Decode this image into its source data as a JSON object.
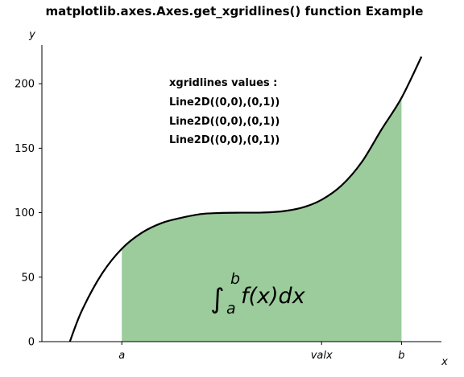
{
  "colors": {
    "curve": "#000000",
    "fill": "#9ccc9c",
    "axis": "#000000",
    "background": "#ffffff"
  },
  "chart_data": {
    "type": "line",
    "title": "matplotlib.axes.Axes.get_xgridlines() function Example",
    "xlabel": "x",
    "ylabel": "y",
    "xlim": [
      0,
      10
    ],
    "ylim": [
      0,
      240
    ],
    "grid": false,
    "spines_visible": [
      "left",
      "bottom"
    ],
    "x": [
      0.0,
      0.5,
      1.0,
      1.5,
      2.0,
      2.5,
      3.0,
      3.5,
      4.0,
      4.5,
      5.0,
      5.5,
      6.0,
      6.5,
      7.0,
      7.5,
      8.0,
      8.5,
      9.0,
      9.5,
      10.0
    ],
    "series": [
      {
        "x": [
          0.7,
          1.0,
          1.5,
          2.0,
          2.5,
          3.0,
          3.5,
          4.0,
          4.5,
          5.0,
          5.5,
          6.0,
          6.5,
          7.0,
          7.5,
          8.0,
          8.5,
          9.0,
          9.5
        ],
        "values": [
          0,
          24.0,
          52.5,
          72,
          84.4,
          92,
          96.1,
          99.0,
          99.8,
          100,
          100.1,
          101,
          103.8,
          110,
          121.1,
          139,
          164.5,
          189,
          221
        ]
      }
    ],
    "fill_between": {
      "from_x": 2.0,
      "to_x": 9.0,
      "baseline": 0
    },
    "yticks": {
      "values": [
        0,
        50,
        100,
        150,
        200
      ],
      "labels": [
        "0",
        "50",
        "100",
        "150",
        "200"
      ]
    },
    "xticks": {
      "values": [
        2.0,
        7.0,
        9.0
      ],
      "labels": [
        "a",
        "valx",
        "b"
      ]
    },
    "annotations": {
      "text_block": [
        "xgridlines values :",
        "Line2D((0,0),(0,1))",
        "Line2D((0,0),(0,1))",
        "Line2D((0,0),(0,1))"
      ],
      "integral": {
        "integral_sign": "∫",
        "upper_limit": "b",
        "lower_limit": "a",
        "body": "f(x)dx"
      }
    }
  }
}
